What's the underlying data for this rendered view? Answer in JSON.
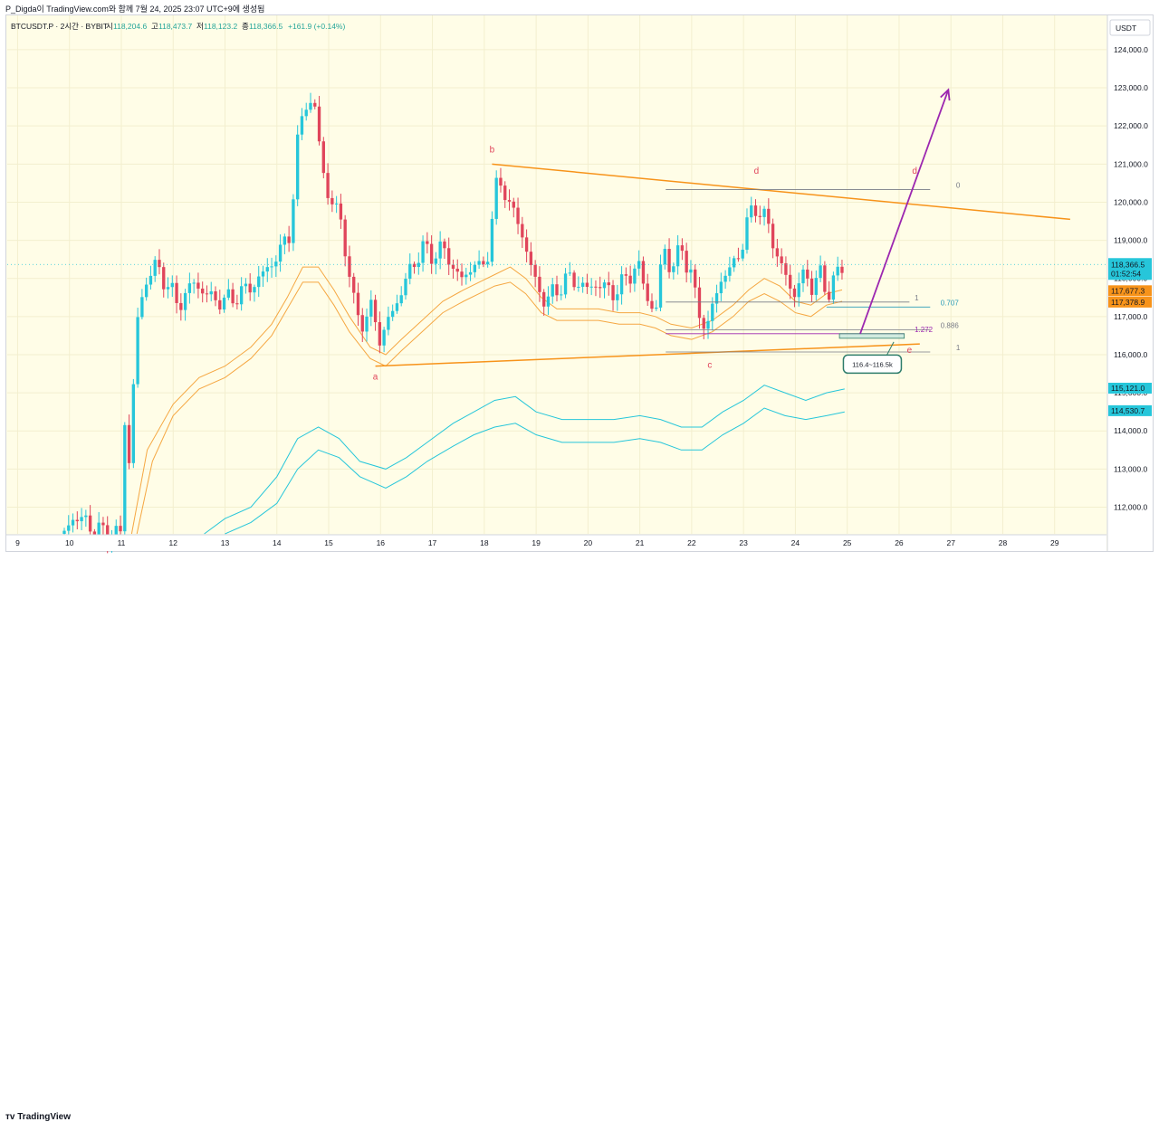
{
  "author_line": "P_Digda이 TradingView.com와 함께 7월 24, 2025 23:07 UTC+9에 생성됨",
  "footer_logo": "TradingView",
  "header": {
    "symbol": "BTCUSDT.P · 2시간 · BYBIT",
    "open_label": "시",
    "open": "118,204.6",
    "high_label": "고",
    "high": "118,473.7",
    "low_label": "저",
    "low": "118,123.2",
    "close_label": "종",
    "close": "118,366.5",
    "change": "+161.9 (+0.14%)"
  },
  "currency": "USDT",
  "colors": {
    "background": "#fffde7",
    "up": "#26c6da",
    "down": "#e0455b",
    "trendline": "#f7931a",
    "arrow": "#9c27b0",
    "envelope_orange": "#f5a742",
    "envelope_cyan": "#26c6da",
    "wave_label": "#e0455b"
  },
  "chart_data": {
    "type": "candlestick",
    "symbol": "BTCUSDT.P",
    "timeframe": "2시간",
    "exchange": "BYBIT",
    "y_range": [
      111300,
      124900
    ],
    "y_ticks": [
      {
        "v": 112000,
        "label": "112,000.0"
      },
      {
        "v": 113000,
        "label": "113,000.0"
      },
      {
        "v": 114000,
        "label": "114,000.0"
      },
      {
        "v": 115000,
        "label": "115,000.0"
      },
      {
        "v": 116000,
        "label": "116,000.0"
      },
      {
        "v": 117000,
        "label": "117,000.0"
      },
      {
        "v": 118000,
        "label": "118,000.0"
      },
      {
        "v": 119000,
        "label": "119,000.0"
      },
      {
        "v": 120000,
        "label": "120,000.0"
      },
      {
        "v": 121000,
        "label": "121,000.0"
      },
      {
        "v": 122000,
        "label": "122,000.0"
      },
      {
        "v": 123000,
        "label": "123,000.0"
      },
      {
        "v": 124000,
        "label": "124,000.0"
      }
    ],
    "x_range": [
      8.8,
      30.0
    ],
    "x_ticks": [
      {
        "v": 9,
        "label": "9"
      },
      {
        "v": 10,
        "label": "10"
      },
      {
        "v": 11,
        "label": "11"
      },
      {
        "v": 12,
        "label": "12"
      },
      {
        "v": 13,
        "label": "13"
      },
      {
        "v": 14,
        "label": "14"
      },
      {
        "v": 15,
        "label": "15"
      },
      {
        "v": 16,
        "label": "16"
      },
      {
        "v": 17,
        "label": "17"
      },
      {
        "v": 18,
        "label": "18"
      },
      {
        "v": 19,
        "label": "19"
      },
      {
        "v": 20,
        "label": "20"
      },
      {
        "v": 21,
        "label": "21"
      },
      {
        "v": 22,
        "label": "22"
      },
      {
        "v": 23,
        "label": "23"
      },
      {
        "v": 24,
        "label": "24"
      },
      {
        "v": 25,
        "label": "25"
      },
      {
        "v": 26,
        "label": "26"
      },
      {
        "v": 27,
        "label": "27"
      },
      {
        "v": 28,
        "label": "28"
      },
      {
        "v": 29,
        "label": "29"
      }
    ],
    "price_path": [
      [
        9.9,
        111300
      ],
      [
        10.1,
        111800
      ],
      [
        10.4,
        111500
      ],
      [
        10.7,
        111300
      ],
      [
        11.0,
        111300
      ],
      [
        11.05,
        114500
      ],
      [
        11.15,
        113200
      ],
      [
        11.3,
        116800
      ],
      [
        11.5,
        118100
      ],
      [
        11.7,
        118300
      ],
      [
        11.9,
        117800
      ],
      [
        12.1,
        117300
      ],
      [
        12.4,
        117900
      ],
      [
        12.7,
        117500
      ],
      [
        13.0,
        117400
      ],
      [
        13.3,
        117600
      ],
      [
        13.6,
        117900
      ],
      [
        13.9,
        118400
      ],
      [
        14.1,
        118800
      ],
      [
        14.25,
        119200
      ],
      [
        14.4,
        121500
      ],
      [
        14.55,
        122700
      ],
      [
        14.7,
        122600
      ],
      [
        14.85,
        121300
      ],
      [
        15.0,
        120000
      ],
      [
        15.2,
        119800
      ],
      [
        15.35,
        118500
      ],
      [
        15.5,
        117200
      ],
      [
        15.7,
        116800
      ],
      [
        15.85,
        117300
      ],
      [
        16.0,
        116300
      ],
      [
        16.15,
        116900
      ],
      [
        16.35,
        117500
      ],
      [
        16.6,
        118300
      ],
      [
        16.8,
        118800
      ],
      [
        17.0,
        118600
      ],
      [
        17.2,
        118800
      ],
      [
        17.4,
        118300
      ],
      [
        17.6,
        117900
      ],
      [
        17.8,
        118500
      ],
      [
        17.95,
        118100
      ],
      [
        18.1,
        118900
      ],
      [
        18.2,
        120300
      ],
      [
        18.35,
        120500
      ],
      [
        18.5,
        119900
      ],
      [
        18.7,
        119300
      ],
      [
        18.85,
        118600
      ],
      [
        19.0,
        117800
      ],
      [
        19.2,
        117400
      ],
      [
        19.4,
        117700
      ],
      [
        19.6,
        118000
      ],
      [
        19.8,
        117900
      ],
      [
        20.0,
        117700
      ],
      [
        20.2,
        117900
      ],
      [
        20.45,
        117600
      ],
      [
        20.7,
        117900
      ],
      [
        20.95,
        118400
      ],
      [
        21.1,
        117700
      ],
      [
        21.3,
        117000
      ],
      [
        21.45,
        118900
      ],
      [
        21.6,
        118200
      ],
      [
        21.8,
        118800
      ],
      [
        22.0,
        118100
      ],
      [
        22.1,
        117200
      ],
      [
        22.3,
        116700
      ],
      [
        22.45,
        117500
      ],
      [
        22.6,
        118100
      ],
      [
        22.8,
        118300
      ],
      [
        22.95,
        118800
      ],
      [
        23.1,
        119600
      ],
      [
        23.25,
        119900
      ],
      [
        23.45,
        119500
      ],
      [
        23.6,
        118800
      ],
      [
        23.8,
        118100
      ],
      [
        23.95,
        117500
      ],
      [
        24.1,
        118100
      ],
      [
        24.3,
        117800
      ],
      [
        24.45,
        118200
      ],
      [
        24.6,
        117500
      ],
      [
        24.75,
        118100
      ],
      [
        24.95,
        118200
      ]
    ],
    "last_price": {
      "label": "118,366.5",
      "countdown": "01:52:54",
      "value": 118366.5
    },
    "price_tags": [
      {
        "label": "117,677.3",
        "value": 117677.3,
        "color": "#f7931a"
      },
      {
        "label": "117,378.9",
        "value": 117378.9,
        "color": "#f7931a"
      },
      {
        "label": "115,121.0",
        "value": 115121.0,
        "color": "#26c6da"
      },
      {
        "label": "114,530.7",
        "value": 114530.7,
        "color": "#26c6da"
      }
    ],
    "orange_bands": [
      {
        "path": [
          [
            11.2,
            111300
          ],
          [
            11.5,
            113500
          ],
          [
            12,
            114700
          ],
          [
            12.5,
            115400
          ],
          [
            13,
            115700
          ],
          [
            13.5,
            116200
          ],
          [
            13.9,
            116800
          ],
          [
            14.2,
            117500
          ],
          [
            14.5,
            118300
          ],
          [
            14.8,
            118300
          ],
          [
            15.1,
            117700
          ],
          [
            15.4,
            117000
          ],
          [
            15.8,
            116200
          ],
          [
            16.1,
            116000
          ],
          [
            16.4,
            116400
          ],
          [
            16.8,
            116900
          ],
          [
            17.2,
            117400
          ],
          [
            17.6,
            117700
          ],
          [
            17.9,
            117900
          ],
          [
            18.2,
            118100
          ],
          [
            18.5,
            118300
          ],
          [
            18.8,
            118000
          ],
          [
            19.1,
            117500
          ],
          [
            19.4,
            117200
          ],
          [
            19.8,
            117200
          ],
          [
            20.2,
            117200
          ],
          [
            20.6,
            117100
          ],
          [
            21.0,
            117100
          ],
          [
            21.3,
            117000
          ],
          [
            21.6,
            116800
          ],
          [
            22.0,
            116700
          ],
          [
            22.4,
            116900
          ],
          [
            22.8,
            117300
          ],
          [
            23.1,
            117700
          ],
          [
            23.4,
            118000
          ],
          [
            23.7,
            117800
          ],
          [
            24.0,
            117400
          ],
          [
            24.3,
            117300
          ],
          [
            24.6,
            117600
          ],
          [
            24.9,
            117700
          ]
        ]
      },
      {
        "path": [
          [
            11.3,
            111300
          ],
          [
            11.6,
            113200
          ],
          [
            12,
            114400
          ],
          [
            12.5,
            115100
          ],
          [
            13,
            115400
          ],
          [
            13.5,
            115900
          ],
          [
            13.9,
            116500
          ],
          [
            14.2,
            117200
          ],
          [
            14.5,
            117900
          ],
          [
            14.8,
            117900
          ],
          [
            15.1,
            117300
          ],
          [
            15.4,
            116600
          ],
          [
            15.8,
            115900
          ],
          [
            16.1,
            115700
          ],
          [
            16.4,
            116100
          ],
          [
            16.8,
            116600
          ],
          [
            17.2,
            117100
          ],
          [
            17.6,
            117400
          ],
          [
            17.9,
            117600
          ],
          [
            18.2,
            117800
          ],
          [
            18.5,
            117900
          ],
          [
            18.8,
            117600
          ],
          [
            19.1,
            117100
          ],
          [
            19.4,
            116900
          ],
          [
            19.8,
            116900
          ],
          [
            20.2,
            116900
          ],
          [
            20.6,
            116800
          ],
          [
            21.0,
            116800
          ],
          [
            21.3,
            116700
          ],
          [
            21.6,
            116500
          ],
          [
            22.0,
            116400
          ],
          [
            22.4,
            116600
          ],
          [
            22.8,
            117000
          ],
          [
            23.1,
            117400
          ],
          [
            23.4,
            117600
          ],
          [
            23.7,
            117400
          ],
          [
            24.0,
            117100
          ],
          [
            24.3,
            117000
          ],
          [
            24.6,
            117300
          ],
          [
            24.9,
            117400
          ]
        ]
      }
    ],
    "cyan_bands": [
      {
        "path": [
          [
            12.6,
            111300
          ],
          [
            13.0,
            111700
          ],
          [
            13.5,
            112000
          ],
          [
            14.0,
            112800
          ],
          [
            14.4,
            113800
          ],
          [
            14.8,
            114100
          ],
          [
            15.2,
            113800
          ],
          [
            15.6,
            113200
          ],
          [
            16.1,
            113000
          ],
          [
            16.5,
            113300
          ],
          [
            16.9,
            113700
          ],
          [
            17.4,
            114200
          ],
          [
            17.8,
            114500
          ],
          [
            18.2,
            114800
          ],
          [
            18.6,
            114900
          ],
          [
            19.0,
            114500
          ],
          [
            19.5,
            114300
          ],
          [
            20.0,
            114300
          ],
          [
            20.5,
            114300
          ],
          [
            21.0,
            114400
          ],
          [
            21.4,
            114300
          ],
          [
            21.8,
            114100
          ],
          [
            22.2,
            114100
          ],
          [
            22.6,
            114500
          ],
          [
            23.0,
            114800
          ],
          [
            23.4,
            115200
          ],
          [
            23.8,
            115000
          ],
          [
            24.2,
            114800
          ],
          [
            24.6,
            115000
          ],
          [
            24.95,
            115100
          ]
        ]
      },
      {
        "path": [
          [
            13.0,
            111300
          ],
          [
            13.5,
            111600
          ],
          [
            14.0,
            112100
          ],
          [
            14.4,
            113000
          ],
          [
            14.8,
            113500
          ],
          [
            15.2,
            113300
          ],
          [
            15.6,
            112800
          ],
          [
            16.1,
            112500
          ],
          [
            16.5,
            112800
          ],
          [
            16.9,
            113200
          ],
          [
            17.4,
            113600
          ],
          [
            17.8,
            113900
          ],
          [
            18.2,
            114100
          ],
          [
            18.6,
            114200
          ],
          [
            19.0,
            113900
          ],
          [
            19.5,
            113700
          ],
          [
            20.0,
            113700
          ],
          [
            20.5,
            113700
          ],
          [
            21.0,
            113800
          ],
          [
            21.4,
            113700
          ],
          [
            21.8,
            113500
          ],
          [
            22.2,
            113500
          ],
          [
            22.6,
            113900
          ],
          [
            23.0,
            114200
          ],
          [
            23.4,
            114600
          ],
          [
            23.8,
            114400
          ],
          [
            24.2,
            114300
          ],
          [
            24.6,
            114400
          ],
          [
            24.95,
            114500
          ]
        ]
      }
    ],
    "trendlines": [
      {
        "from": [
          18.15,
          121000
        ],
        "to": [
          29.3,
          119550
        ]
      },
      {
        "from": [
          15.9,
          115700
        ],
        "to": [
          26.4,
          116280
        ]
      }
    ],
    "wave_labels": [
      {
        "label": "a",
        "x": 15.9,
        "y": 115350
      },
      {
        "label": "b",
        "x": 18.15,
        "y": 121300
      },
      {
        "label": "c",
        "x": 22.35,
        "y": 115650
      },
      {
        "label": "d",
        "x": 23.25,
        "y": 120750
      },
      {
        "label": "e",
        "x": 26.2,
        "y": 116050
      },
      {
        "label": "d",
        "x": 26.3,
        "y": 120750
      }
    ],
    "fib_levels": [
      {
        "label": "0",
        "value": 120330,
        "from": 21.5,
        "to": 26.6,
        "label_x": 27.1,
        "color": "#787b86"
      },
      {
        "label": "1",
        "value": 117380,
        "from": 21.5,
        "to": 26.2,
        "label_x": 26.3,
        "color": "#787b86"
      },
      {
        "label": "0.707",
        "value": 117250,
        "from": 24.6,
        "to": 26.6,
        "label_x": 26.8,
        "color": "#2a9bb8"
      },
      {
        "label": "0.886",
        "value": 116650,
        "from": 21.5,
        "to": 26.6,
        "label_x": 26.8,
        "color": "#787b86"
      },
      {
        "label": "1.272",
        "value": 116550,
        "from": 21.5,
        "to": 26.1,
        "label_x": 26.3,
        "color": "#9c27b0"
      },
      {
        "label": "1",
        "value": 116070,
        "from": 21.5,
        "to": 26.6,
        "label_x": 27.1,
        "color": "#787b86"
      }
    ],
    "target_zone": {
      "label": "116.4~116.5k",
      "from": 24.85,
      "to": 26.1,
      "top": 116550,
      "bottom": 116430,
      "callout_x": 25.45,
      "callout_y": 115800
    },
    "projection_arrow": {
      "from": [
        25.25,
        116550
      ],
      "to": [
        26.95,
        122950
      ]
    }
  }
}
